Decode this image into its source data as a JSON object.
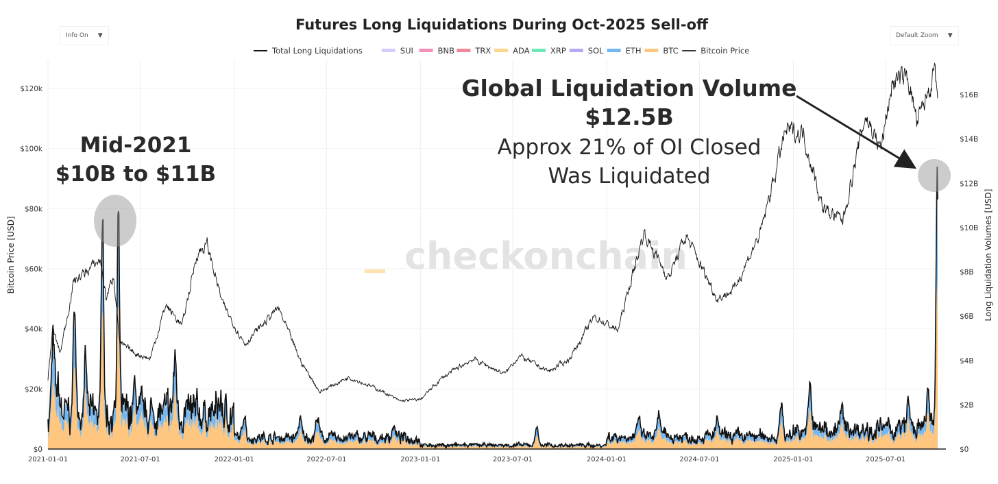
{
  "controls": {
    "info_label": "Info On",
    "zoom_label": "Default Zoom",
    "caret": "▼"
  },
  "watermark": "checkonchain",
  "chart_data": {
    "type": "area",
    "title": "Futures Long Liquidations During Oct-2025 Sell-off",
    "ylabel": "Bitcoin Price [USD]",
    "y2label": "Long Liquidation Volumes [USD]",
    "ylim": [
      0,
      130000
    ],
    "y2lim": [
      0,
      17500000000
    ],
    "yticks": [
      "$0",
      "$20k",
      "$40k",
      "$60k",
      "$80k",
      "$100k",
      "$120k"
    ],
    "y2ticks": [
      "$0",
      "$2B",
      "$4B",
      "$6B",
      "$8B",
      "$10B",
      "$12B",
      "$14B",
      "$16B"
    ],
    "xticks": [
      "2021-01-01",
      "2021-07-01",
      "2022-01-01",
      "2022-07-01",
      "2023-01-01",
      "2023-07-01",
      "2024-01-01",
      "2024-07-01",
      "2025-01-01",
      "2025-07-01"
    ],
    "xrange": [
      "2021-01-01",
      "2025-10-11"
    ],
    "legend": [
      {
        "name": "Total Long Liquidations",
        "color": "#111111",
        "kind": "line"
      },
      {
        "name": "SUI",
        "color": "#d8ccff",
        "kind": "area"
      },
      {
        "name": "BNB",
        "color": "#f48fb8",
        "kind": "area"
      },
      {
        "name": "TRX",
        "color": "#f4869b",
        "kind": "area"
      },
      {
        "name": "ADA",
        "color": "#fcd68a",
        "kind": "area"
      },
      {
        "name": "XRP",
        "color": "#6ee7b7",
        "kind": "area"
      },
      {
        "name": "SOL",
        "color": "#b9a6f5",
        "kind": "area"
      },
      {
        "name": "ETH",
        "color": "#72b6f2",
        "kind": "area"
      },
      {
        "name": "BTC",
        "color": "#ffc680",
        "kind": "area"
      },
      {
        "name": "Bitcoin Price",
        "color": "#333333",
        "kind": "line"
      }
    ],
    "legend_placement": "top-center",
    "asset_shares": {
      "BTC": 0.6,
      "ETH": 0.3,
      "SOL": 0.03,
      "XRP": 0.03,
      "ADA": 0.02,
      "TRX": 0.005,
      "BNB": 0.01,
      "SUI": 0.005
    },
    "bitcoin_price": [
      [
        "2021-01-01",
        23000
      ],
      [
        "2021-01-10",
        40000
      ],
      [
        "2021-01-25",
        32000
      ],
      [
        "2021-02-21",
        56000
      ],
      [
        "2021-03-10",
        58000
      ],
      [
        "2021-04-14",
        63000
      ],
      [
        "2021-04-25",
        50000
      ],
      [
        "2021-05-10",
        58000
      ],
      [
        "2021-05-22",
        35000
      ],
      [
        "2021-06-20",
        32000
      ],
      [
        "2021-07-20",
        30000
      ],
      [
        "2021-08-20",
        48000
      ],
      [
        "2021-09-21",
        41000
      ],
      [
        "2021-10-20",
        65000
      ],
      [
        "2021-11-09",
        68000
      ],
      [
        "2021-12-10",
        48000
      ],
      [
        "2022-01-22",
        35000
      ],
      [
        "2022-03-28",
        47000
      ],
      [
        "2022-05-12",
        29000
      ],
      [
        "2022-06-18",
        19000
      ],
      [
        "2022-08-14",
        24000
      ],
      [
        "2022-10-15",
        19500
      ],
      [
        "2022-11-21",
        16000
      ],
      [
        "2023-01-01",
        16500
      ],
      [
        "2023-02-15",
        24000
      ],
      [
        "2023-04-14",
        30000
      ],
      [
        "2023-06-15",
        25000
      ],
      [
        "2023-07-13",
        31000
      ],
      [
        "2023-09-10",
        25800
      ],
      [
        "2023-10-20",
        30000
      ],
      [
        "2023-12-08",
        44000
      ],
      [
        "2024-01-23",
        39500
      ],
      [
        "2024-03-14",
        72000
      ],
      [
        "2024-05-01",
        57000
      ],
      [
        "2024-06-05",
        71000
      ],
      [
        "2024-08-05",
        50000
      ],
      [
        "2024-09-06",
        53000
      ],
      [
        "2024-10-29",
        72000
      ],
      [
        "2024-12-17",
        106000
      ],
      [
        "2025-01-21",
        105000
      ],
      [
        "2025-02-28",
        80000
      ],
      [
        "2025-04-08",
        76000
      ],
      [
        "2025-05-22",
        111000
      ],
      [
        "2025-06-22",
        100000
      ],
      [
        "2025-07-14",
        122000
      ],
      [
        "2025-08-14",
        124000
      ],
      [
        "2025-09-01",
        108000
      ],
      [
        "2025-10-06",
        126000
      ],
      [
        "2025-10-11",
        112000
      ]
    ],
    "liquidation_spikes": [
      [
        "2021-01-11",
        4500000000.0
      ],
      [
        "2021-01-21",
        2500000000.0
      ],
      [
        "2021-02-22",
        6800000000.0
      ],
      [
        "2021-03-15",
        3500000000.0
      ],
      [
        "2021-04-18",
        11100000000.0
      ],
      [
        "2021-05-19",
        10200000000.0
      ],
      [
        "2021-06-21",
        2500000000.0
      ],
      [
        "2021-09-07",
        3800000000.0
      ],
      [
        "2021-12-04",
        2000000000.0
      ],
      [
        "2022-01-21",
        1600000000.0
      ],
      [
        "2022-05-10",
        1300000000.0
      ],
      [
        "2022-06-13",
        1400000000.0
      ],
      [
        "2022-11-09",
        1000000000.0
      ],
      [
        "2023-08-17",
        1000000000.0
      ],
      [
        "2024-03-05",
        1200000000.0
      ],
      [
        "2024-04-13",
        1400000000.0
      ],
      [
        "2024-08-05",
        1200000000.0
      ],
      [
        "2024-12-09",
        1900000000.0
      ],
      [
        "2025-02-03",
        2600000000.0
      ],
      [
        "2025-04-06",
        1600000000.0
      ],
      [
        "2025-08-14",
        2000000000.0
      ],
      [
        "2025-09-22",
        2500000000.0
      ],
      [
        "2025-10-10",
        12500000000.0
      ]
    ],
    "liquidation_baseline": {
      "2021": 1400000000.0,
      "2022": 450000000.0,
      "2023": 150000000.0,
      "2024": 500000000.0,
      "2025": 800000000.0
    },
    "annotations": {
      "left_heading": "Mid-2021",
      "left_value": "$10B to $11B",
      "right_heading": "Global Liquidation Volume",
      "right_value": "$12.5B",
      "right_line1": "Approx 21% of OI Closed",
      "right_line2": "Was Liquidated"
    }
  }
}
